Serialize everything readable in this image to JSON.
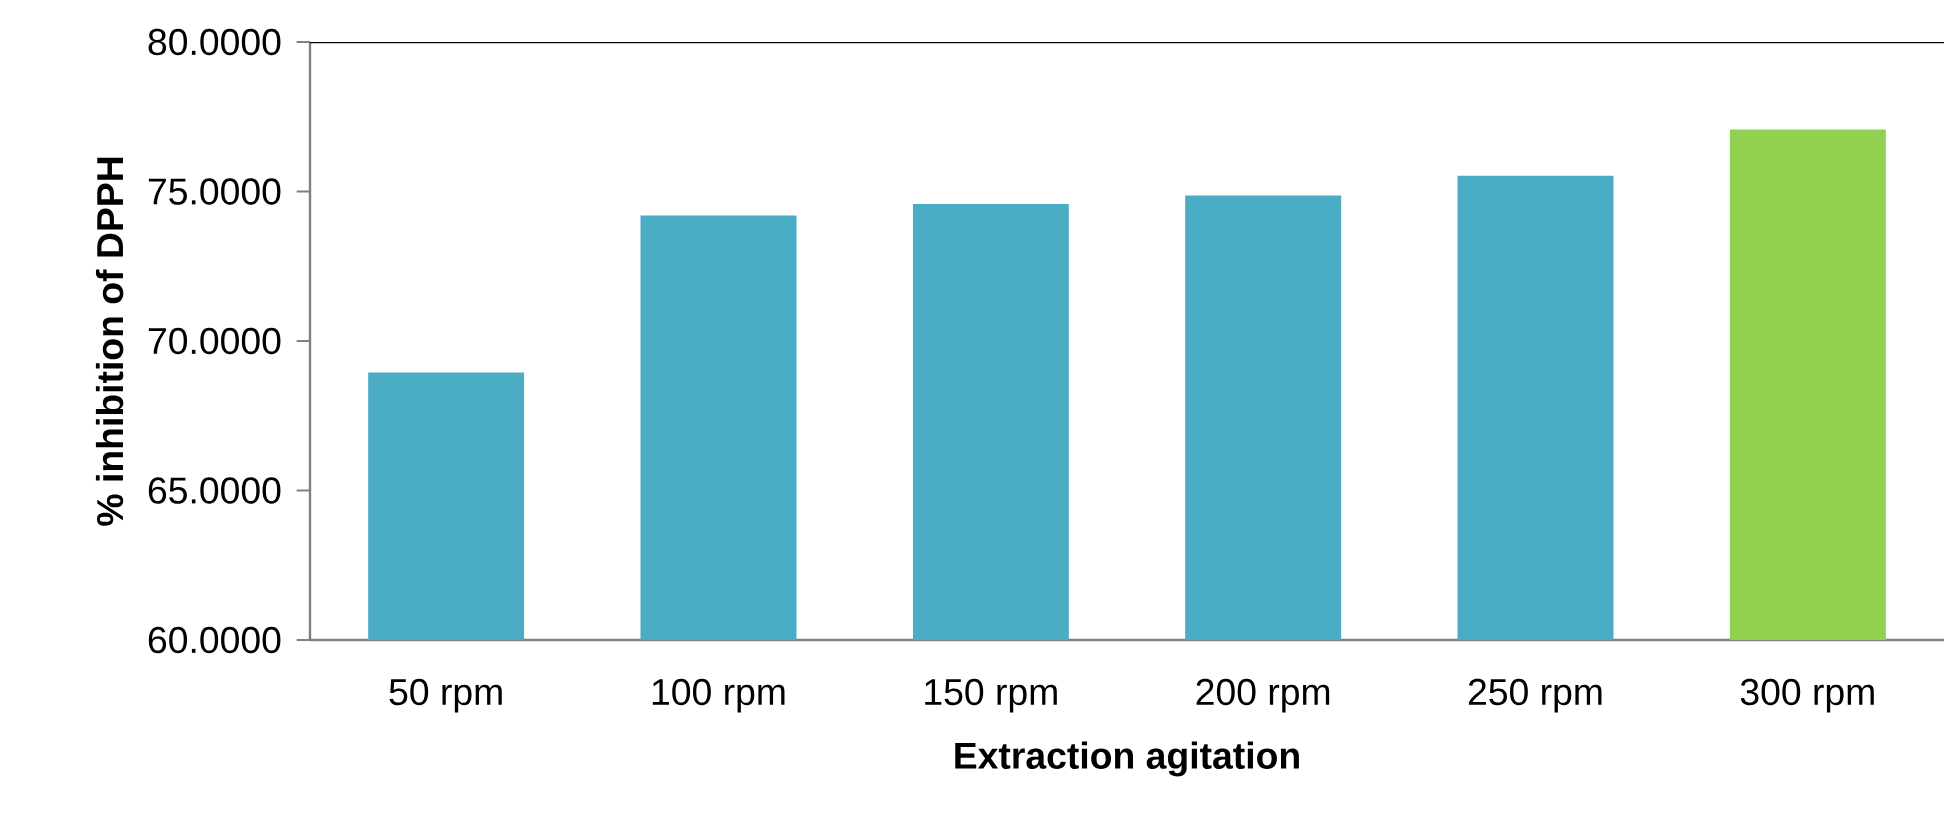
{
  "chart_data": {
    "type": "bar",
    "xlabel": "Extraction agitation",
    "ylabel": "% inhibition of DPPH",
    "categories": [
      "50 rpm",
      "100 rpm",
      "150 rpm",
      "200 rpm",
      "250 rpm",
      "300 rpm"
    ],
    "values": [
      68.95,
      74.2,
      74.58,
      74.87,
      75.53,
      77.07
    ],
    "colors": [
      "#4bacc6",
      "#4bacc6",
      "#4bacc6",
      "#4bacc6",
      "#4bacc6",
      "#92d050"
    ],
    "ylim": [
      60,
      80
    ],
    "yticks": [
      {
        "value": 60,
        "label": "60.0000"
      },
      {
        "value": 65,
        "label": "65.0000"
      },
      {
        "value": 70,
        "label": "70.0000"
      },
      {
        "value": 75,
        "label": "75.0000"
      },
      {
        "value": 80,
        "label": "80.0000"
      }
    ]
  }
}
